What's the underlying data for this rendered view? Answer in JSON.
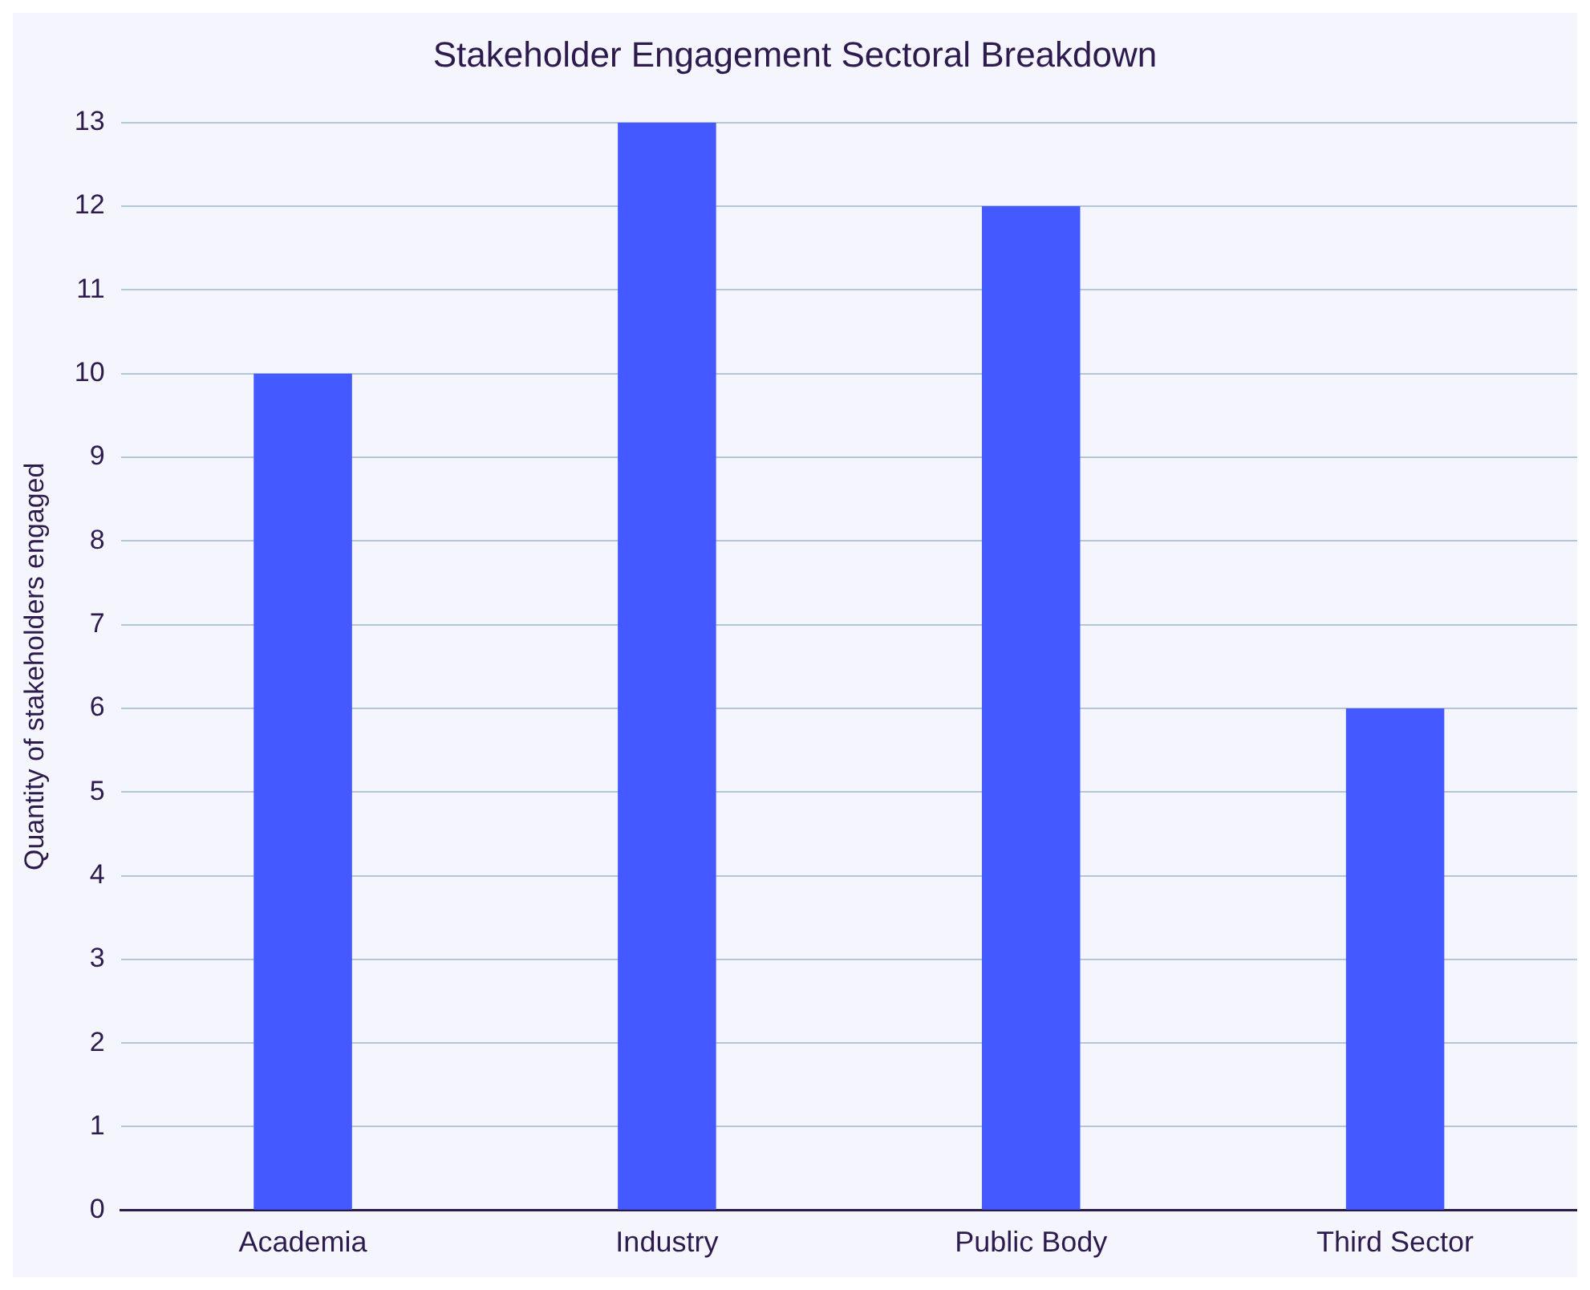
{
  "chart_data": {
    "type": "bar",
    "title": "Stakeholder Engagement Sectoral Breakdown",
    "ylabel": "Quantity of stakeholders engaged",
    "categories": [
      "Academia",
      "Industry",
      "Public Body",
      "Third Sector"
    ],
    "values": [
      10,
      13,
      12,
      6
    ],
    "color": "#4459ff",
    "ylim": [
      0,
      13
    ],
    "yticks": [
      0,
      1,
      2,
      3,
      4,
      5,
      6,
      7,
      8,
      9,
      10,
      11,
      12,
      13
    ],
    "grid": "y",
    "legend": false
  }
}
